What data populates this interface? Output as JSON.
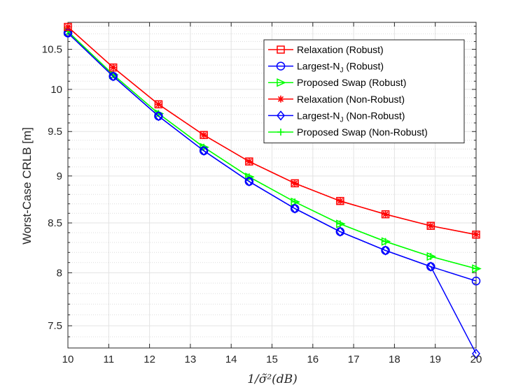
{
  "chart_data": {
    "type": "line",
    "title": "",
    "xlabel": "1/σ̃²(dB)",
    "ylabel": "Worst-Case CRLB [m]",
    "y_scale": "log",
    "xlim": [
      10,
      20
    ],
    "ylim": [
      7.3,
      10.85
    ],
    "x_ticks": [
      10,
      11,
      12,
      13,
      14,
      15,
      16,
      17,
      18,
      19,
      20
    ],
    "y_ticks": [
      7.5,
      8,
      8.5,
      9,
      9.5,
      10,
      10.5
    ],
    "y_minor_ticks": [
      7.4,
      7.6,
      7.7,
      7.8,
      7.9,
      8.1,
      8.2,
      8.3,
      8.4,
      8.6,
      8.7,
      8.8,
      8.9,
      9.1,
      9.2,
      9.3,
      9.4,
      9.6,
      9.7,
      9.8,
      9.9,
      10.1,
      10.2,
      10.3,
      10.4,
      10.6,
      10.7,
      10.8
    ],
    "grid": true,
    "legend_position": "top-right",
    "x": [
      10,
      11.11,
      12.22,
      13.33,
      14.44,
      15.56,
      16.67,
      17.78,
      18.89,
      20
    ],
    "series": [
      {
        "name": "Relaxation (Robust)",
        "color": "#ff0000",
        "marker": "square-open",
        "values": [
          10.79,
          10.27,
          9.82,
          9.46,
          9.16,
          8.92,
          8.73,
          8.59,
          8.47,
          8.38
        ]
      },
      {
        "name": "Largest-N_J (Robust)",
        "color": "#0000ff",
        "marker": "circle-open",
        "values": [
          10.71,
          10.16,
          9.68,
          9.28,
          8.94,
          8.65,
          8.41,
          8.22,
          8.06,
          7.92
        ]
      },
      {
        "name": "Proposed Swap (Robust)",
        "color": "#00ff00",
        "marker": "triangle-right-open",
        "values": [
          10.73,
          10.18,
          9.71,
          9.32,
          8.99,
          8.72,
          8.49,
          8.31,
          8.16,
          8.04
        ]
      },
      {
        "name": "Relaxation (Non-Robust)",
        "color": "#ff0000",
        "marker": "asterisk",
        "values": [
          10.79,
          10.27,
          9.82,
          9.46,
          9.16,
          8.92,
          8.73,
          8.59,
          8.47,
          8.38
        ]
      },
      {
        "name": "Largest-N_J (Non-Robust)",
        "color": "#0000ff",
        "marker": "diamond-open",
        "values": [
          10.71,
          10.16,
          9.68,
          9.28,
          8.94,
          8.65,
          8.41,
          8.22,
          8.06,
          7.25
        ]
      },
      {
        "name": "Proposed Swap (Non-Robust)",
        "color": "#00ff00",
        "marker": "plus",
        "values": [
          10.73,
          10.18,
          9.71,
          9.32,
          8.99,
          8.72,
          8.49,
          8.31,
          8.16,
          8.04
        ]
      }
    ]
  }
}
